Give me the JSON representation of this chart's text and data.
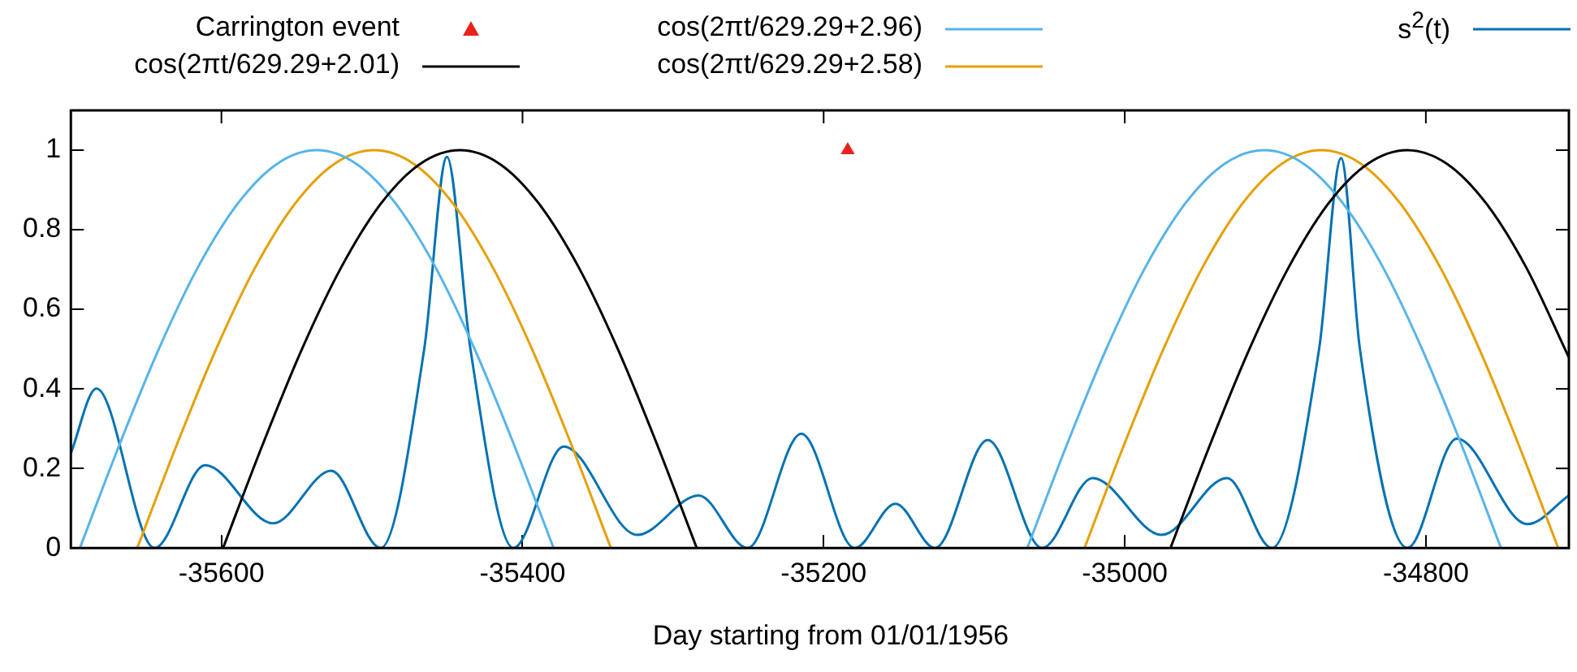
{
  "chart_data": {
    "type": "line",
    "xlabel": "Day starting from 01/01/1956",
    "xlim": [
      -35700,
      -34705
    ],
    "xticks": [
      -35600,
      -35400,
      -35200,
      -35000,
      -34800
    ],
    "ylim": [
      0,
      1.1
    ],
    "yticks": [
      0,
      0.2,
      0.4,
      0.6,
      0.8,
      1
    ],
    "grid": false,
    "legend": "top",
    "series": [
      {
        "name": "Carrington event",
        "type": "scatter",
        "marker": "triangle",
        "color": "#e8231b",
        "x": [
          -35184
        ],
        "values": [
          1
        ]
      },
      {
        "name": "cos(2πt/629.29+2.01)",
        "color": "#000000",
        "marker": "none",
        "x": [
          -35598.9,
          -35572.7,
          -35546.5,
          -35520.2,
          -35494.0,
          -35467.8,
          -35441.6,
          -35415.4,
          -35389.2,
          -35362.9,
          -35336.7,
          -35310.5,
          -35284.3,
          -35100,
          -34969.6,
          -34943.4,
          -34917.2,
          -34890.9,
          -34864.7,
          -34838.5,
          -34812.3,
          -34786.1,
          -34759.9,
          -34733.6,
          -34705
        ],
        "values": [
          0,
          0.259,
          0.5,
          0.707,
          0.866,
          0.966,
          1,
          0.966,
          0.866,
          0.707,
          0.5,
          0.259,
          0,
          null,
          0,
          0.259,
          0.5,
          0.707,
          0.866,
          0.966,
          1,
          0.966,
          0.866,
          0.707,
          0.479
        ]
      },
      {
        "name": "cos(2πt/629.29+2.96)",
        "color": "#56b4e9",
        "marker": "none",
        "x": [
          -35694.0,
          -35667.8,
          -35641.6,
          -35615.4,
          -35589.1,
          -35562.9,
          -35536.7,
          -35510.5,
          -35484.3,
          -35458.0,
          -35431.8,
          -35405.6,
          -35379.4,
          -35200,
          -35064.7,
          -35038.5,
          -35012.3,
          -34986.1,
          -34959.8,
          -34933.6,
          -34907.4,
          -34881.2,
          -34855.0,
          -34828.7,
          -34802.5,
          -34776.3,
          -34750.1
        ],
        "values": [
          0,
          0.259,
          0.5,
          0.707,
          0.866,
          0.966,
          1,
          0.966,
          0.866,
          0.707,
          0.5,
          0.259,
          0,
          null,
          0,
          0.259,
          0.5,
          0.707,
          0.866,
          0.966,
          1,
          0.966,
          0.866,
          0.707,
          0.5,
          0.259,
          0
        ]
      },
      {
        "name": "cos(2πt/629.29+2.58)",
        "color": "#e69f00",
        "marker": "none",
        "x": [
          -35655.9,
          -35629.7,
          -35603.5,
          -35577.3,
          -35551.0,
          -35524.8,
          -35498.6,
          -35472.4,
          -35446.2,
          -35420.0,
          -35393.7,
          -35367.5,
          -35341.3,
          -35200,
          -35026.7,
          -35000.5,
          -34974.3,
          -34948.1,
          -34921.8,
          -34895.6,
          -34869.4,
          -34843.2,
          -34817.0,
          -34790.7,
          -34764.5,
          -34738.3,
          -34712.1
        ],
        "values": [
          0,
          0.259,
          0.5,
          0.707,
          0.866,
          0.966,
          1,
          0.966,
          0.866,
          0.707,
          0.5,
          0.259,
          0,
          null,
          0,
          0.259,
          0.5,
          0.707,
          0.866,
          0.966,
          1,
          0.966,
          0.866,
          0.707,
          0.5,
          0.259,
          0
        ]
      },
      {
        "name": "s$^{2}$(t)",
        "color": "#0072b2",
        "marker": "none",
        "x": [
          -35700,
          -35683,
          -35644.4,
          -35610.8,
          -35565.7,
          -35527.1,
          -35494.2,
          -35465.3,
          -35450.2,
          -35434.6,
          -35406.1,
          -35372.6,
          -35323.8,
          -35283.0,
          -35250.5,
          -35214.8,
          -35179.4,
          -35152.3,
          -35126.0,
          -35091.0,
          -35054.9,
          -35021.3,
          -34975.5,
          -34932.1,
          -34902.2,
          -34870.9,
          -34856.3,
          -34843.8,
          -34812.3,
          -34779.4,
          -34732.5,
          -34705
        ],
        "values": [
          0.238,
          0.401,
          0,
          0.208,
          0.062,
          0.194,
          0,
          0.5,
          0.983,
          0.5,
          0,
          0.255,
          0.033,
          0.132,
          0,
          0.287,
          0,
          0.111,
          0,
          0.271,
          0,
          0.176,
          0.033,
          0.176,
          0,
          0.5,
          0.98,
          0.5,
          0,
          0.275,
          0.06,
          0.132
        ]
      }
    ]
  }
}
